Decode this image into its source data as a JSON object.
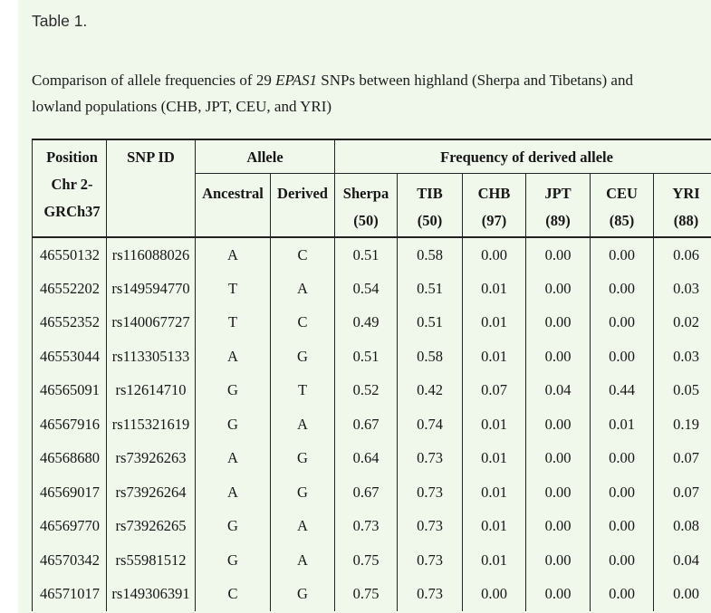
{
  "page": {
    "title": "Table 1."
  },
  "caption": {
    "before": "Comparison of allele frequencies of 29 ",
    "italic": "EPAS1",
    "after": " SNPs between highland (Sherpa and Tibetans) and lowland populations (CHB, JPT, CEU, and YRI)"
  },
  "table": {
    "headers": {
      "position": "Position Chr 2-GRCh37",
      "snp_id": "SNP ID",
      "allele": "Allele",
      "ancestral": "Ancestral",
      "derived": "Derived",
      "frequency": "Frequency of derived allele",
      "populations": [
        {
          "name": "Sherpa",
          "count": "(50)"
        },
        {
          "name": "TIB",
          "count": "(50)"
        },
        {
          "name": "CHB",
          "count": "(97)"
        },
        {
          "name": "JPT",
          "count": "(89)"
        },
        {
          "name": "CEU",
          "count": "(85)"
        },
        {
          "name": "YRI",
          "count": "(88)"
        }
      ]
    },
    "rows": [
      {
        "position": "46550132",
        "snp_id": "rs116088026",
        "ancestral": "A",
        "derived": "C",
        "frequencies": [
          "0.51",
          "0.58",
          "0.00",
          "0.00",
          "0.00",
          "0.06"
        ]
      },
      {
        "position": "46552202",
        "snp_id": "rs149594770",
        "ancestral": "T",
        "derived": "A",
        "frequencies": [
          "0.54",
          "0.51",
          "0.01",
          "0.00",
          "0.00",
          "0.03"
        ]
      },
      {
        "position": "46552352",
        "snp_id": "rs140067727",
        "ancestral": "T",
        "derived": "C",
        "frequencies": [
          "0.49",
          "0.51",
          "0.01",
          "0.00",
          "0.00",
          "0.02"
        ]
      },
      {
        "position": "46553044",
        "snp_id": "rs113305133",
        "ancestral": "A",
        "derived": "G",
        "frequencies": [
          "0.51",
          "0.58",
          "0.01",
          "0.00",
          "0.00",
          "0.03"
        ]
      },
      {
        "position": "46565091",
        "snp_id": "rs12614710",
        "ancestral": "G",
        "derived": "T",
        "frequencies": [
          "0.52",
          "0.42",
          "0.07",
          "0.04",
          "0.44",
          "0.05"
        ]
      },
      {
        "position": "46567916",
        "snp_id": "rs115321619",
        "ancestral": "G",
        "derived": "A",
        "frequencies": [
          "0.67",
          "0.74",
          "0.01",
          "0.00",
          "0.01",
          "0.19"
        ]
      },
      {
        "position": "46568680",
        "snp_id": "rs73926263",
        "ancestral": "A",
        "derived": "G",
        "frequencies": [
          "0.64",
          "0.73",
          "0.01",
          "0.00",
          "0.00",
          "0.07"
        ]
      },
      {
        "position": "46569017",
        "snp_id": "rs73926264",
        "ancestral": "A",
        "derived": "G",
        "frequencies": [
          "0.67",
          "0.73",
          "0.01",
          "0.00",
          "0.00",
          "0.07"
        ]
      },
      {
        "position": "46569770",
        "snp_id": "rs73926265",
        "ancestral": "G",
        "derived": "A",
        "frequencies": [
          "0.73",
          "0.73",
          "0.01",
          "0.00",
          "0.00",
          "0.08"
        ]
      },
      {
        "position": "46570342",
        "snp_id": "rs55981512",
        "ancestral": "G",
        "derived": "A",
        "frequencies": [
          "0.75",
          "0.73",
          "0.01",
          "0.00",
          "0.00",
          "0.04"
        ]
      },
      {
        "position": "46571017",
        "snp_id": "rs149306391",
        "ancestral": "C",
        "derived": "G",
        "frequencies": [
          "0.75",
          "0.73",
          "0.00",
          "0.00",
          "0.00",
          "0.00"
        ]
      }
    ]
  },
  "colors": {
    "page_background": "#ffffff",
    "content_background": "#f0f7eb",
    "border": "#222222",
    "text": "#1c1c1c"
  }
}
